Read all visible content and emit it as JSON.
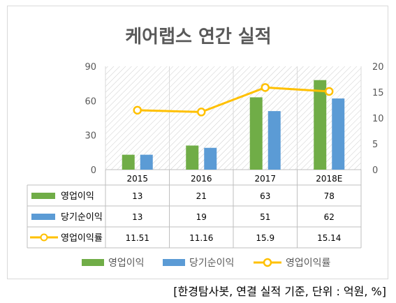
{
  "chart_data": {
    "type": "bar",
    "title": "케어랩스 연간 실적",
    "categories": [
      "2015",
      "2016",
      "2017",
      "2018E"
    ],
    "series": [
      {
        "name": "영업이익",
        "kind": "bar",
        "axis": "left",
        "color": "#70ad47",
        "values": [
          13,
          21,
          63,
          78
        ]
      },
      {
        "name": "당기순이익",
        "kind": "bar",
        "axis": "left",
        "color": "#5b9bd5",
        "values": [
          13,
          19,
          51,
          62
        ]
      },
      {
        "name": "영업이익률",
        "kind": "line",
        "axis": "right",
        "color": "#ffc000",
        "values": [
          11.51,
          11.16,
          15.9,
          15.14
        ]
      }
    ],
    "table_values": [
      [
        "13",
        "21",
        "63",
        "78"
      ],
      [
        "13",
        "19",
        "51",
        "62"
      ],
      [
        "11.51",
        "11.16",
        "15.9",
        "15.14"
      ]
    ],
    "left_axis": {
      "ylim": [
        0,
        90
      ],
      "ticks": [
        "0",
        "30",
        "60",
        "90"
      ]
    },
    "right_axis": {
      "ylim": [
        0,
        20
      ],
      "ticks": [
        "0",
        "5",
        "10",
        "15",
        "20"
      ]
    },
    "grid": true,
    "legend_placement": "bottom"
  },
  "source_note": "[한경탐사봇, 연결 실적 기준, 단위 : 억원, %]"
}
